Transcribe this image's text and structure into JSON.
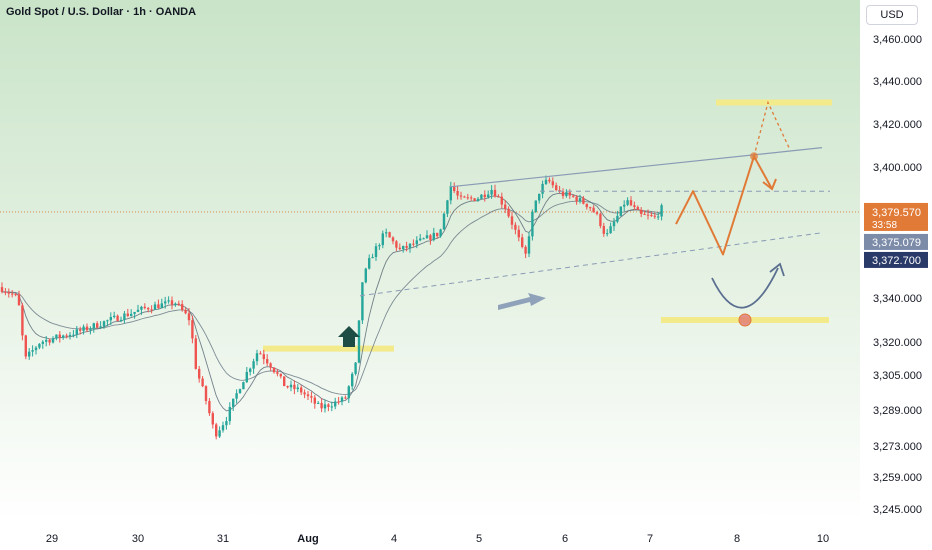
{
  "chart": {
    "title": "Gold Spot / U.S. Dollar · 1h · OANDA",
    "currency": "USD"
  },
  "chart_data": {
    "type": "candlestick",
    "symbol": "Gold Spot / U.S. Dollar",
    "interval": "1h",
    "source": "OANDA",
    "y_ticks": [
      3460.0,
      3440.0,
      3420.0,
      3400.0,
      3340.0,
      3320.0,
      3305.0,
      3289.0,
      3273.0,
      3259.0,
      3245.0
    ],
    "x_ticks": [
      "29",
      "30",
      "31",
      "Aug",
      "4",
      "5",
      "6",
      "7",
      "8",
      "10"
    ],
    "price_labels": [
      {
        "value": "3,379.570",
        "sub": "33:58",
        "color": "#e07a36"
      },
      {
        "value": "3,375.079",
        "color": "#7b8ba8"
      },
      {
        "value": "3,372.700",
        "color": "#2a3a68"
      }
    ],
    "current_price": 3379.57,
    "ema_fast": 3375.079,
    "ema_slow": 3372.7,
    "colors": {
      "up": "#26a69a",
      "down": "#ef5350",
      "background_grad_top": "#cde6cd",
      "background_grad_bottom": "#ffffff",
      "highlight": "#f3ea8c",
      "projection": "#e07a36",
      "arrow": "#7f93b2"
    },
    "levels": {
      "resistance": 3430,
      "support": 3330,
      "breakout_zone": 3317
    }
  }
}
